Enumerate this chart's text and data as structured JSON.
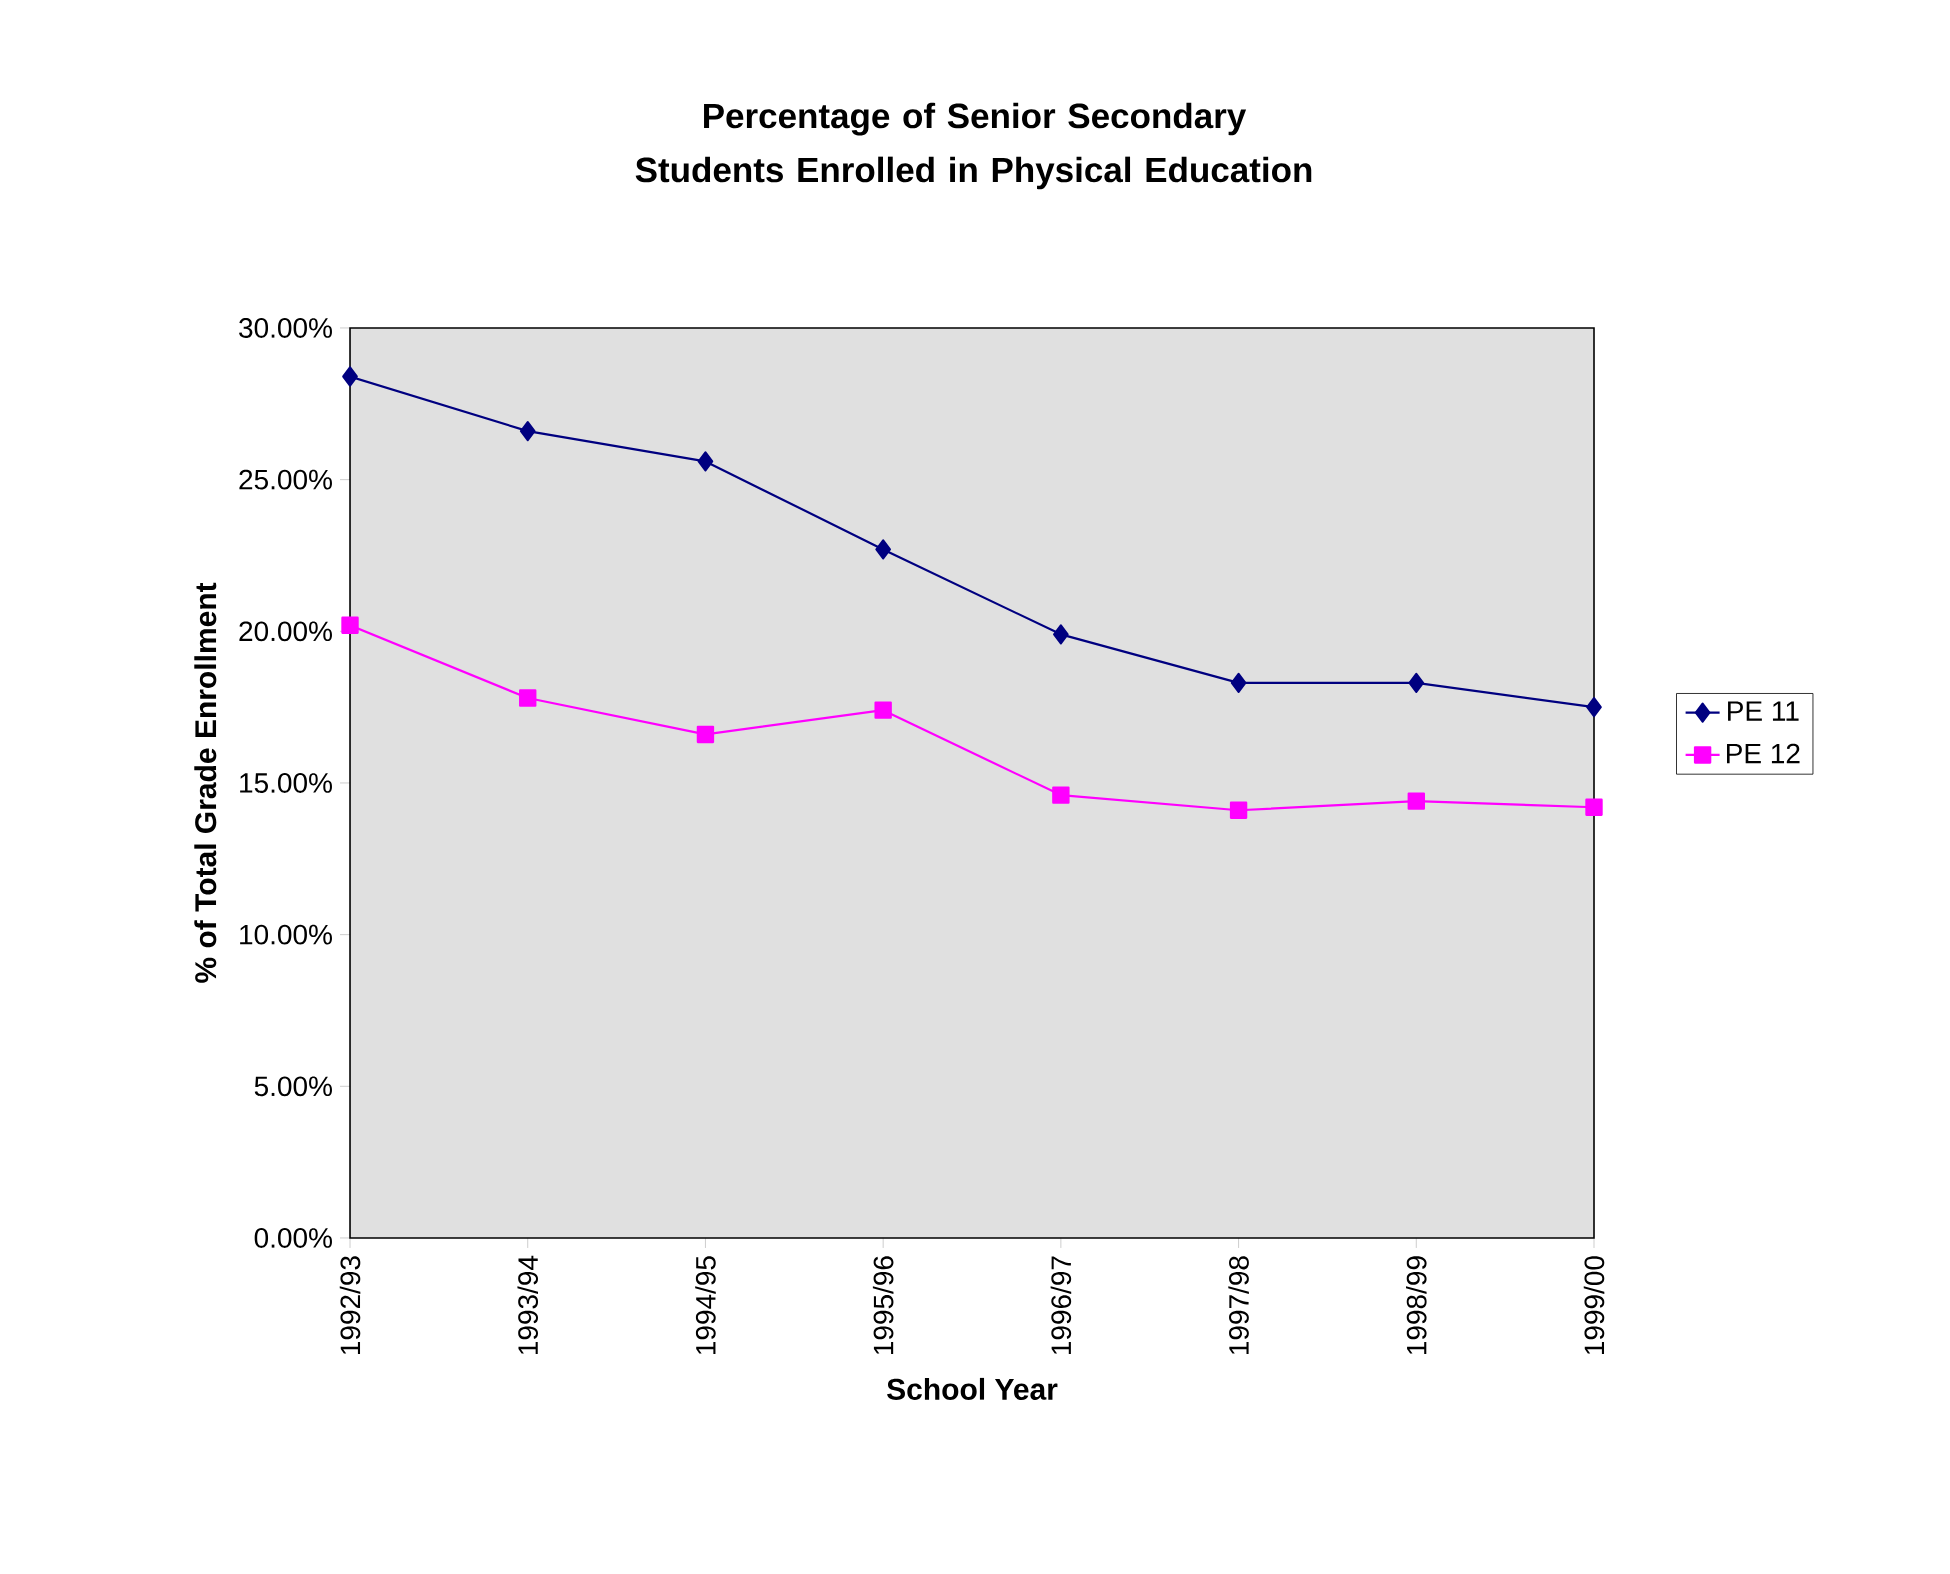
{
  "chart_data": {
    "type": "line",
    "title": "Percentage of Senior Secondary Students Enrolled in Physical Education",
    "xlabel": "School Year",
    "ylabel": "% of Total Grade Enrollment",
    "categories": [
      "1992/93",
      "1993/94",
      "1994/95",
      "1995/96",
      "1996/97",
      "1997/98",
      "1998/99",
      "1999/00"
    ],
    "series": [
      {
        "name": "PE 11",
        "color": "#000080",
        "marker": "diamond",
        "values": [
          28.4,
          26.6,
          25.6,
          22.7,
          19.9,
          18.3,
          18.3,
          17.5
        ]
      },
      {
        "name": "PE 12",
        "color": "#ff00ff",
        "marker": "square",
        "values": [
          20.2,
          17.8,
          16.6,
          17.4,
          14.6,
          14.1,
          14.4,
          14.2
        ]
      }
    ],
    "ylim": [
      0,
      30
    ],
    "yticks": [
      {
        "value": 0,
        "label": "0.00%"
      },
      {
        "value": 5,
        "label": "5.00%"
      },
      {
        "value": 10,
        "label": "10.00%"
      },
      {
        "value": 15,
        "label": "15.00%"
      },
      {
        "value": 20,
        "label": "20.00%"
      },
      {
        "value": 25,
        "label": "25.00%"
      },
      {
        "value": 30,
        "label": "30.00%"
      }
    ],
    "grid": false,
    "legend": "right"
  }
}
